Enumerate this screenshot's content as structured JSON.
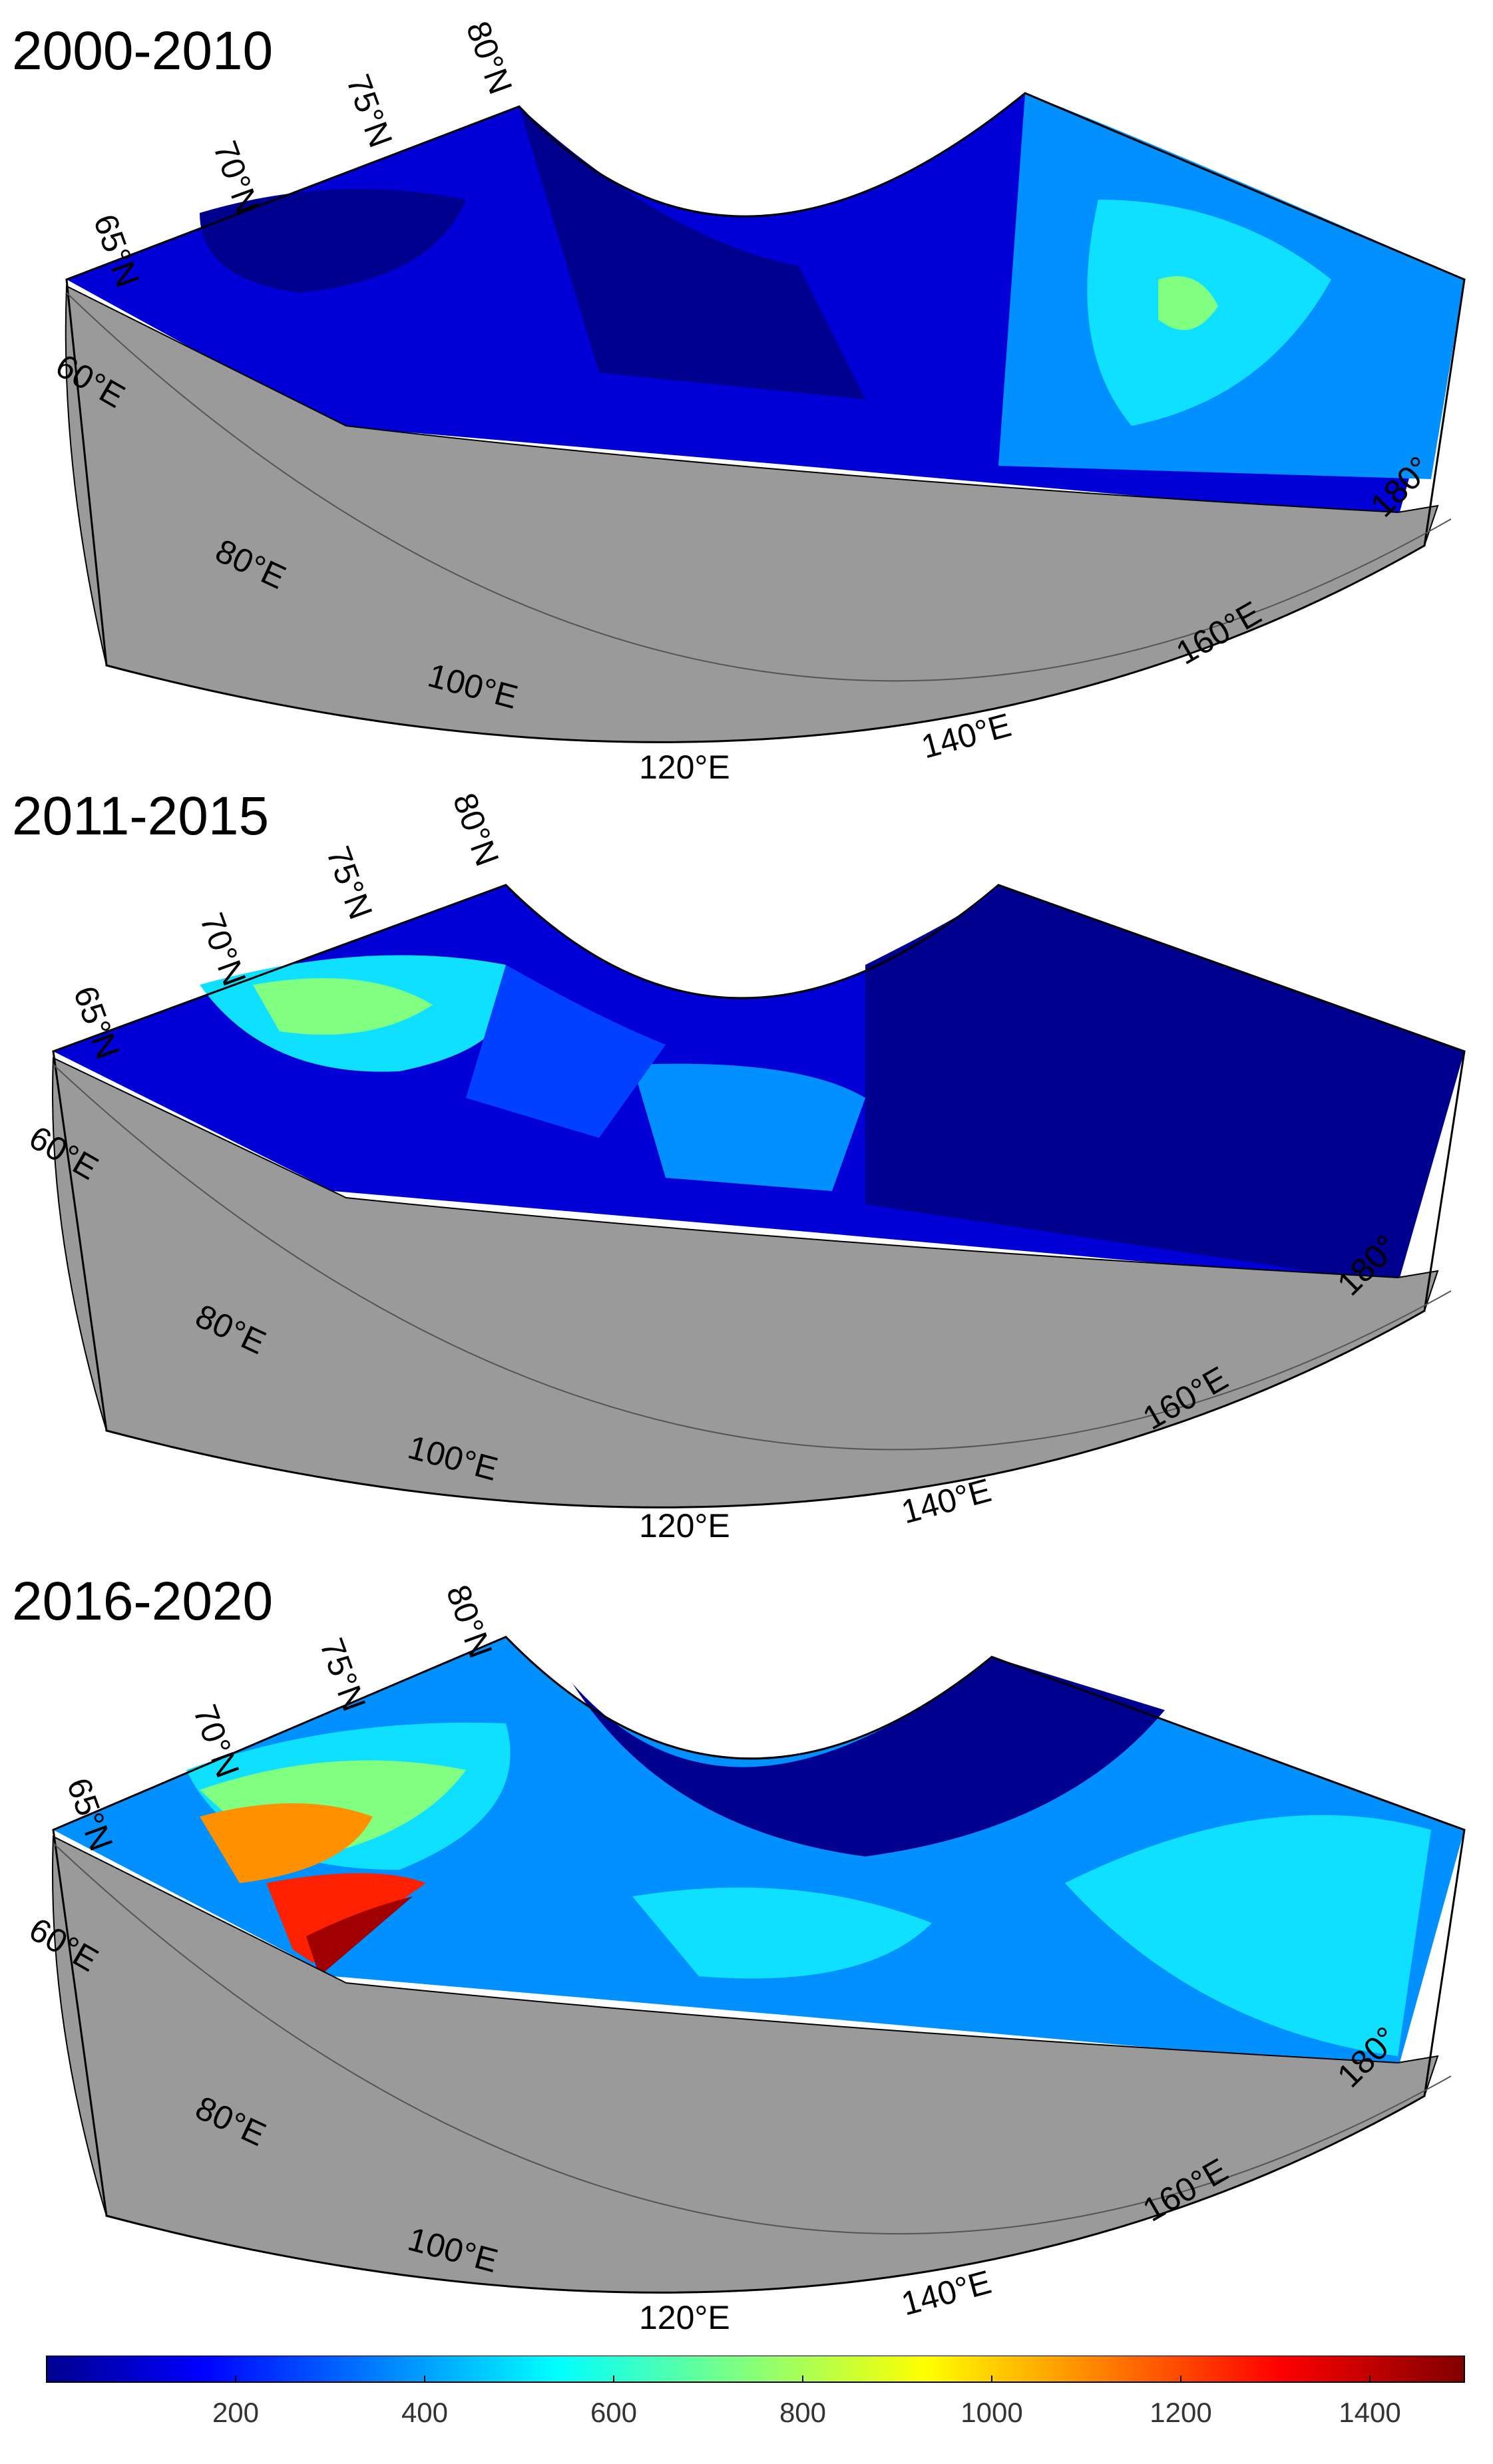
{
  "panels": [
    {
      "title": "2000-2010",
      "scheme": "low"
    },
    {
      "title": "2011-2015",
      "scheme": "mid"
    },
    {
      "title": "2016-2020",
      "scheme": "high"
    }
  ],
  "lat_labels": [
    "65°N",
    "70°N",
    "75°N",
    "80°N"
  ],
  "lon_labels": [
    "60°E",
    "80°E",
    "100°E",
    "120°E",
    "140°E",
    "160°E",
    "180°"
  ],
  "colorbar": {
    "ticks": [
      "200",
      "400",
      "600",
      "800",
      "1000",
      "1200",
      "1400"
    ],
    "min": 0,
    "max": 1500,
    "tick_values": [
      200,
      400,
      600,
      800,
      1000,
      1200,
      1400
    ]
  },
  "colors": {
    "land": "#9a9a9a",
    "deep_blue": "#00008f",
    "dark_blue": "#0000d6",
    "blue": "#0040ff",
    "light_blue": "#0090ff",
    "cyan": "#10e0ff",
    "green": "#80ff80",
    "yellow": "#ffe000",
    "orange": "#ff9000",
    "red": "#ff2000",
    "dark_red": "#a00000"
  }
}
